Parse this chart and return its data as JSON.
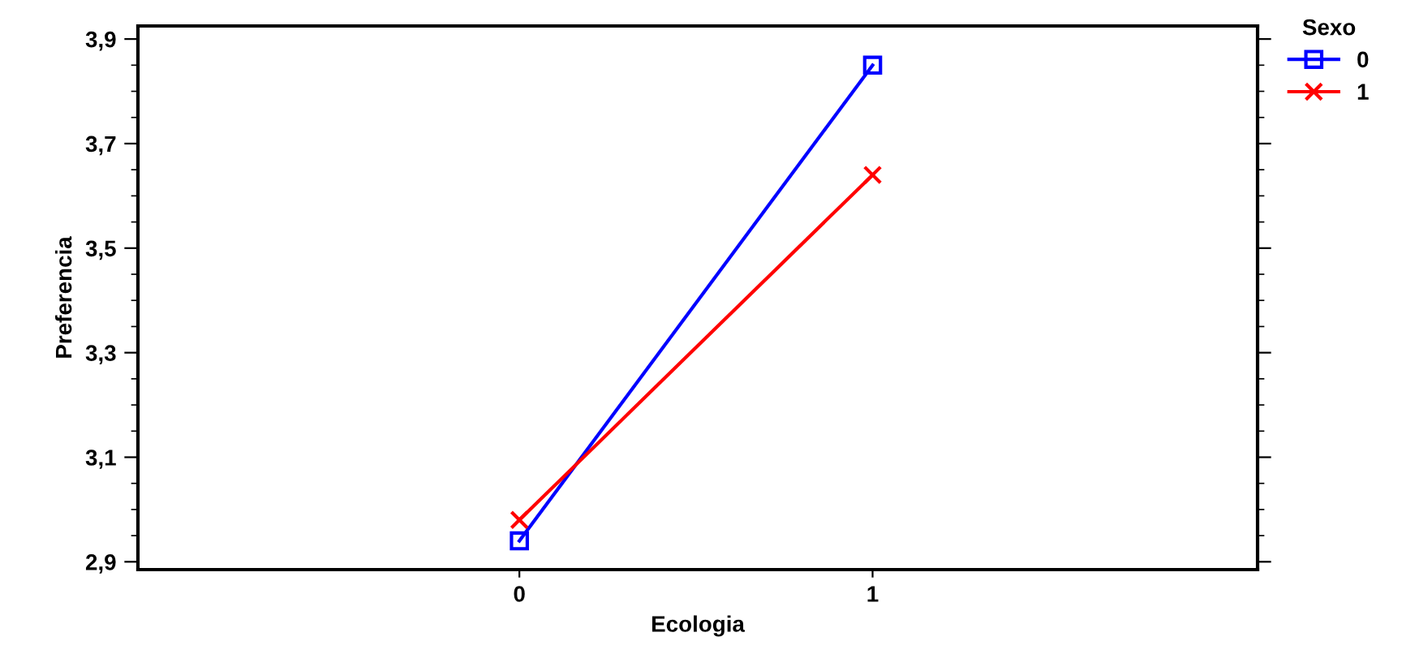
{
  "chart_data": {
    "type": "line",
    "xlabel": "Ecologia",
    "ylabel": "Preferencia",
    "legend_title": "Sexo",
    "legend": "right",
    "x": [
      0,
      1
    ],
    "xlim": [
      -1.08,
      2.09
    ],
    "xticks": [
      0,
      1
    ],
    "ylim": [
      2.885,
      3.925
    ],
    "yticks": [
      {
        "value": 2.9,
        "label": "2,9"
      },
      {
        "value": 3.1,
        "label": "3,1"
      },
      {
        "value": 3.3,
        "label": "3,3"
      },
      {
        "value": 3.5,
        "label": "3,5"
      },
      {
        "value": 3.7,
        "label": "3,7"
      },
      {
        "value": 3.9,
        "label": "3,9"
      }
    ],
    "grid": false,
    "series": [
      {
        "name": "0",
        "color": "#0000ff",
        "marker": "square",
        "values": [
          2.94,
          3.85
        ]
      },
      {
        "name": "1",
        "color": "#ff0000",
        "marker": "cross",
        "values": [
          2.98,
          3.64
        ]
      }
    ]
  }
}
